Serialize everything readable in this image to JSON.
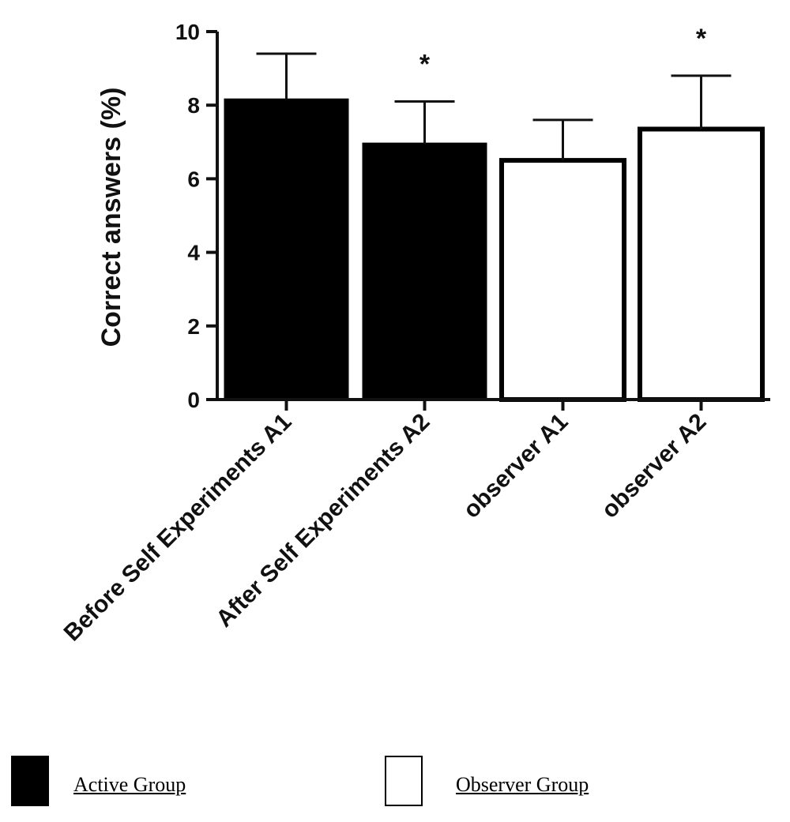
{
  "chart_data": {
    "type": "bar",
    "categories": [
      "Before Self Experiments A1",
      "After Self Experiments A2",
      "observer A1",
      "observer A2"
    ],
    "values": [
      8.15,
      6.95,
      6.5,
      7.35
    ],
    "errors": [
      1.25,
      1.15,
      1.1,
      1.45
    ],
    "groups": [
      "active",
      "active",
      "observer",
      "observer"
    ],
    "significance": [
      "",
      "*",
      "",
      "*"
    ],
    "ylabel": "Correct answers  (%)",
    "xlabel": "",
    "ylim": [
      0,
      10
    ],
    "yticks": [
      "0",
      "2",
      "4",
      "6",
      "8",
      "10"
    ],
    "grid": false
  },
  "legend": {
    "items": [
      {
        "label": "Active Group",
        "fill": "#000000"
      },
      {
        "label": "Observer Group",
        "fill": "#ffffff"
      }
    ]
  }
}
